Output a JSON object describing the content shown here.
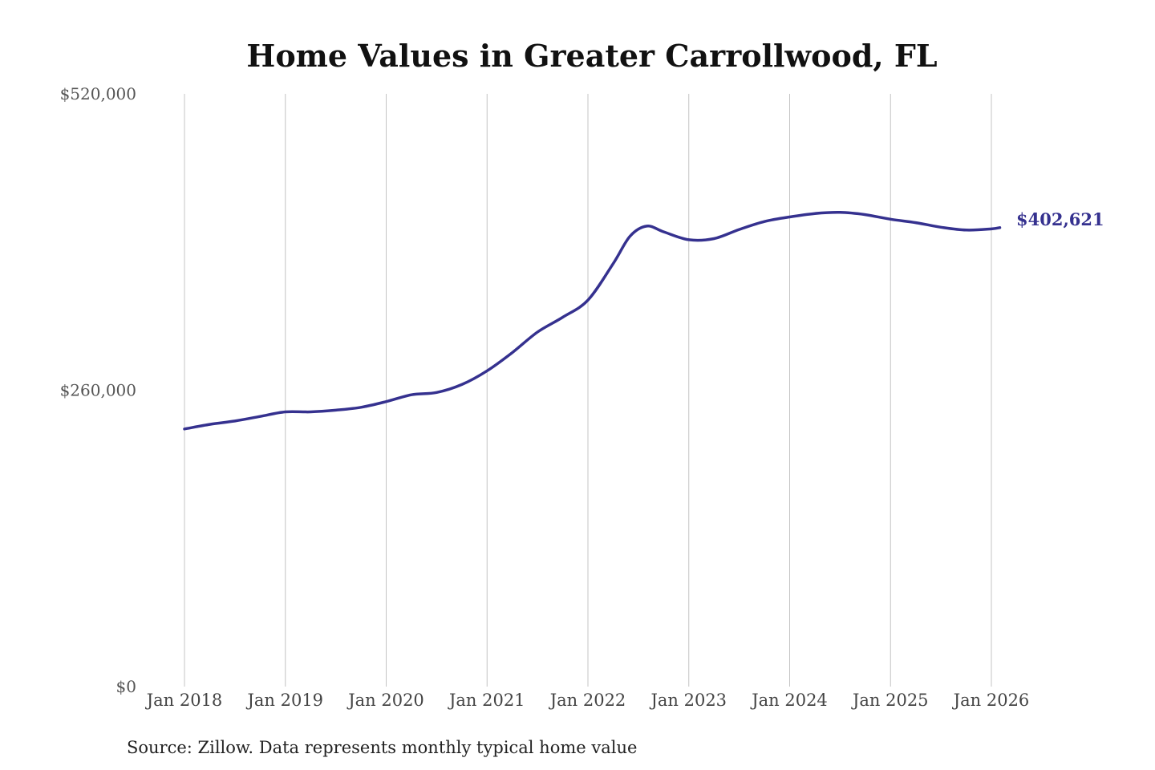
{
  "chart_data": {
    "type": "line",
    "title": "Home Values in Greater Carrollwood, FL",
    "xlabel": "",
    "ylabel": "",
    "source": "Source: Zillow. Data represents monthly typical home value",
    "ylim": [
      0,
      520000
    ],
    "yticks": [
      {
        "value": 0,
        "label": "$0"
      },
      {
        "value": 260000,
        "label": "$260,000"
      },
      {
        "value": 520000,
        "label": "$520,000"
      }
    ],
    "xticks": [
      {
        "date": "2018-01",
        "label": "Jan 2018"
      },
      {
        "date": "2019-01",
        "label": "Jan 2019"
      },
      {
        "date": "2020-01",
        "label": "Jan 2020"
      },
      {
        "date": "2021-01",
        "label": "Jan 2021"
      },
      {
        "date": "2022-01",
        "label": "Jan 2022"
      },
      {
        "date": "2023-01",
        "label": "Jan 2023"
      },
      {
        "date": "2024-01",
        "label": "Jan 2024"
      },
      {
        "date": "2025-01",
        "label": "Jan 2025"
      },
      {
        "date": "2026-01",
        "label": "Jan 2026"
      }
    ],
    "grid": {
      "vertical": true,
      "horizontal": false
    },
    "line_color": "#35318f",
    "end_label": "$402,621",
    "series": [
      {
        "points": [
          {
            "x": "2018-01",
            "y": 226000
          },
          {
            "x": "2018-04",
            "y": 230000
          },
          {
            "x": "2018-07",
            "y": 233000
          },
          {
            "x": "2018-10",
            "y": 237000
          },
          {
            "x": "2019-01",
            "y": 241000
          },
          {
            "x": "2019-04",
            "y": 241000
          },
          {
            "x": "2019-07",
            "y": 242500
          },
          {
            "x": "2019-10",
            "y": 245000
          },
          {
            "x": "2020-01",
            "y": 250000
          },
          {
            "x": "2020-04",
            "y": 256000
          },
          {
            "x": "2020-07",
            "y": 258000
          },
          {
            "x": "2020-10",
            "y": 265000
          },
          {
            "x": "2021-01",
            "y": 277000
          },
          {
            "x": "2021-04",
            "y": 293000
          },
          {
            "x": "2021-07",
            "y": 311000
          },
          {
            "x": "2021-10",
            "y": 324000
          },
          {
            "x": "2022-01",
            "y": 339000
          },
          {
            "x": "2022-04",
            "y": 371000
          },
          {
            "x": "2022-06",
            "y": 395000
          },
          {
            "x": "2022-08",
            "y": 404000
          },
          {
            "x": "2022-10",
            "y": 399000
          },
          {
            "x": "2023-01",
            "y": 392000
          },
          {
            "x": "2023-04",
            "y": 393000
          },
          {
            "x": "2023-07",
            "y": 401000
          },
          {
            "x": "2023-10",
            "y": 408000
          },
          {
            "x": "2024-01",
            "y": 412000
          },
          {
            "x": "2024-04",
            "y": 415000
          },
          {
            "x": "2024-07",
            "y": 416000
          },
          {
            "x": "2024-10",
            "y": 414000
          },
          {
            "x": "2025-01",
            "y": 410000
          },
          {
            "x": "2025-04",
            "y": 407000
          },
          {
            "x": "2025-07",
            "y": 403000
          },
          {
            "x": "2025-10",
            "y": 400500
          },
          {
            "x": "2026-01",
            "y": 401500
          },
          {
            "x": "2026-02",
            "y": 402621
          }
        ]
      }
    ]
  }
}
